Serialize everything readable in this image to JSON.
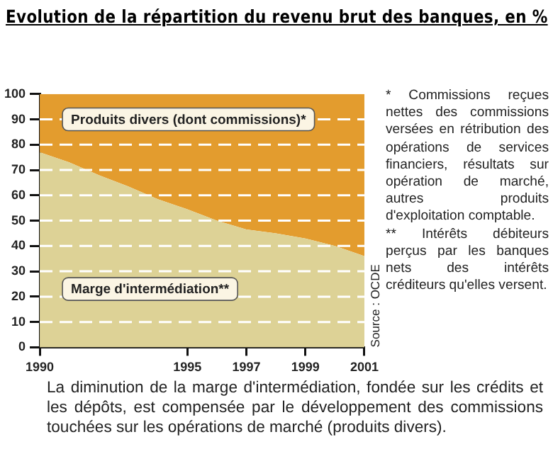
{
  "chart_data": {
    "type": "area",
    "title": "Evolution de la répartition du revenu brut des banques, en %",
    "x": [
      1990,
      1991,
      1992,
      1993,
      1994,
      1995,
      1996,
      1997,
      1998,
      1999,
      2000,
      2001
    ],
    "stacked": true,
    "series": [
      {
        "name": "Marge d'intermédiation**",
        "color": "#ddd296",
        "values": [
          77,
          73,
          68,
          63.5,
          58.5,
          54.5,
          50,
          46.5,
          45,
          43,
          40,
          36
        ]
      },
      {
        "name": "Produits divers (dont commissions)*",
        "color": "#e39c2e",
        "values": [
          23,
          27,
          32,
          36.5,
          41.5,
          45.5,
          50,
          53.5,
          55,
          57,
          60,
          64
        ]
      }
    ],
    "xlim": [
      1990,
      2001
    ],
    "xticks": [
      1990,
      1995,
      1997,
      1999,
      2001
    ],
    "ylim": [
      0,
      100
    ],
    "yticks": [
      0,
      10,
      20,
      30,
      40,
      50,
      60,
      70,
      80,
      90,
      100
    ],
    "grid": "y",
    "legend": false,
    "annotations": [
      "Source : OCDE",
      "* Commissions reçues nettes des commissions versées en rétribution des opérations de services financiers, résultats sur opération de marché, autres produits d'exploitation comptable.",
      "** Intérêts débiteurs perçus par les banques nets des intérêts créditeurs qu'elles versent.",
      "La diminution de la marge d'intermédiation, fondée sur les crédits et les dépôts, est compensée par le développement des commissions touchées sur les opérations de marché (produits divers)."
    ]
  }
}
